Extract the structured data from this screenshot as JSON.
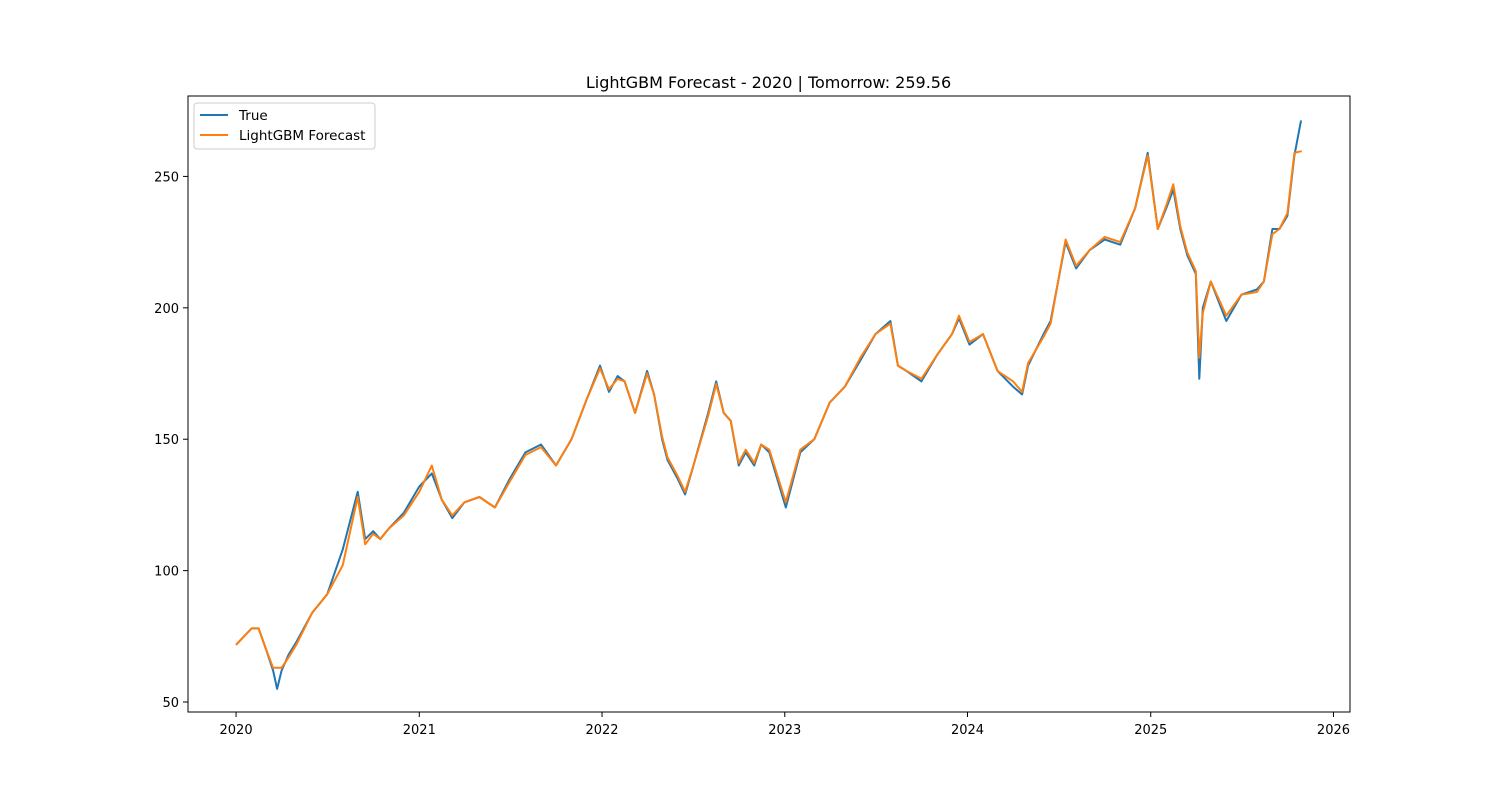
{
  "chart_data": {
    "type": "line",
    "title": "LightGBM Forecast - 2020 | Tomorrow: 259.56",
    "xlabel": "",
    "ylabel": "",
    "x_axis_type": "date",
    "xlim": [
      "2019-09-27",
      "2026-02-03"
    ],
    "ylim": [
      46.2,
      280.6
    ],
    "x_ticks": [
      "2020",
      "2021",
      "2022",
      "2023",
      "2024",
      "2025",
      "2026"
    ],
    "x_tick_dates": [
      "2020-01-01",
      "2021-01-01",
      "2022-01-01",
      "2023-01-01",
      "2024-01-01",
      "2025-01-01",
      "2026-01-01"
    ],
    "y_ticks": [
      50,
      100,
      150,
      200,
      250
    ],
    "grid": false,
    "legend_position": "upper left",
    "x": [
      "2020-01-02",
      "2020-02-01",
      "2020-02-15",
      "2020-03-01",
      "2020-03-15",
      "2020-03-23",
      "2020-04-01",
      "2020-04-15",
      "2020-05-01",
      "2020-06-01",
      "2020-07-01",
      "2020-08-01",
      "2020-08-31",
      "2020-09-15",
      "2020-10-01",
      "2020-10-15",
      "2020-11-01",
      "2020-12-01",
      "2021-01-01",
      "2021-01-26",
      "2021-02-15",
      "2021-03-08",
      "2021-04-01",
      "2021-05-01",
      "2021-06-01",
      "2021-07-01",
      "2021-08-01",
      "2021-09-01",
      "2021-10-01",
      "2021-11-01",
      "2021-12-01",
      "2021-12-28",
      "2022-01-15",
      "2022-02-01",
      "2022-02-15",
      "2022-03-08",
      "2022-04-01",
      "2022-04-15",
      "2022-05-01",
      "2022-05-12",
      "2022-06-01",
      "2022-06-16",
      "2022-07-01",
      "2022-08-01",
      "2022-08-17",
      "2022-09-01",
      "2022-09-15",
      "2022-10-01",
      "2022-10-15",
      "2022-11-01",
      "2022-11-15",
      "2022-12-01",
      "2023-01-03",
      "2023-02-01",
      "2023-03-01",
      "2023-04-01",
      "2023-05-01",
      "2023-06-01",
      "2023-07-01",
      "2023-07-31",
      "2023-08-15",
      "2023-09-01",
      "2023-10-01",
      "2023-11-01",
      "2023-12-01",
      "2023-12-15",
      "2024-01-05",
      "2024-02-01",
      "2024-03-01",
      "2024-04-01",
      "2024-04-19",
      "2024-05-01",
      "2024-06-01",
      "2024-06-15",
      "2024-07-15",
      "2024-08-05",
      "2024-09-01",
      "2024-10-01",
      "2024-11-01",
      "2024-12-01",
      "2024-12-26",
      "2025-01-15",
      "2025-02-01",
      "2025-02-15",
      "2025-03-01",
      "2025-03-15",
      "2025-04-01",
      "2025-04-08",
      "2025-04-15",
      "2025-05-01",
      "2025-06-01",
      "2025-07-01",
      "2025-08-01",
      "2025-08-15",
      "2025-09-01",
      "2025-09-15",
      "2025-10-01",
      "2025-10-15",
      "2025-10-28"
    ],
    "series": [
      {
        "name": "True",
        "color": "#1f77b4",
        "values": [
          72,
          78,
          78,
          70,
          62,
          55,
          62,
          68,
          73,
          84,
          91,
          108,
          130,
          112,
          115,
          112,
          116,
          122,
          132,
          137,
          127,
          120,
          126,
          128,
          124,
          135,
          145,
          148,
          140,
          150,
          165,
          178,
          168,
          174,
          172,
          160,
          176,
          167,
          150,
          142,
          135,
          129,
          139,
          160,
          172,
          160,
          157,
          140,
          145,
          140,
          148,
          145,
          124,
          145,
          150,
          164,
          170,
          180,
          190,
          195,
          178,
          176,
          172,
          182,
          190,
          196,
          186,
          190,
          176,
          170,
          167,
          178,
          190,
          195,
          225,
          215,
          222,
          226,
          224,
          238,
          259,
          230,
          238,
          245,
          230,
          220,
          213,
          173,
          200,
          210,
          195,
          205,
          207,
          210,
          230,
          230,
          235,
          258,
          271
        ]
      },
      {
        "name": "LightGBM Forecast",
        "color": "#ff7f0e",
        "values": [
          72,
          78,
          78,
          70,
          63,
          63,
          63,
          67,
          72,
          84,
          91,
          102,
          128,
          110,
          114,
          112,
          116,
          121,
          130,
          140,
          127,
          121,
          126,
          128,
          124,
          134,
          144,
          147,
          140,
          150,
          165,
          177,
          169,
          173,
          172,
          160,
          175,
          167,
          151,
          143,
          136,
          130,
          139,
          159,
          171,
          160,
          157,
          141,
          146,
          141,
          148,
          146,
          126,
          146,
          150,
          164,
          170,
          181,
          190,
          194,
          178,
          176,
          173,
          182,
          190,
          197,
          187,
          190,
          176,
          172,
          168,
          179,
          189,
          194,
          226,
          216,
          222,
          227,
          225,
          238,
          258,
          230,
          239,
          247,
          231,
          221,
          214,
          181,
          198,
          210,
          197,
          205,
          206,
          210,
          228,
          230,
          236,
          259,
          259.56
        ]
      }
    ]
  }
}
